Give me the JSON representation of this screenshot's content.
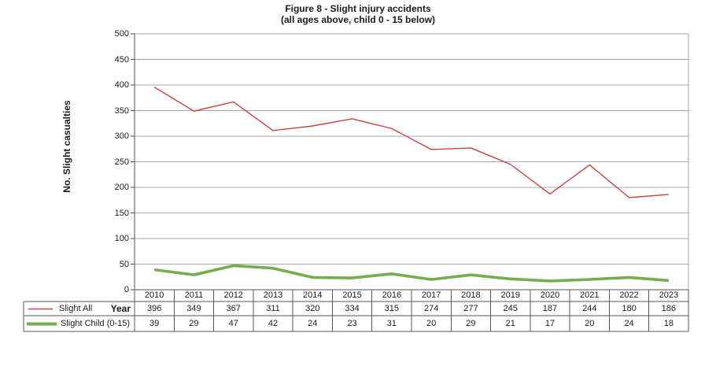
{
  "title": {
    "line1": "Figure 8 - Slight injury accidents",
    "line2": "(all ages above, child 0 - 15 below)"
  },
  "chart_data": {
    "type": "line",
    "title": "Figure 8 - Slight injury accidents (all ages above, child 0 - 15 below)",
    "xlabel": "Year",
    "ylabel": "No. Slight casualties",
    "categories": [
      "2010",
      "2011",
      "2012",
      "2013",
      "2014",
      "2015",
      "2016",
      "2017",
      "2018",
      "2019",
      "2020",
      "2021",
      "2022",
      "2023"
    ],
    "series": [
      {
        "name": "Slight All",
        "color": "#cc4141",
        "stroke_width": 1.4,
        "values": [
          396,
          349,
          367,
          311,
          320,
          334,
          315,
          274,
          277,
          245,
          187,
          244,
          180,
          186
        ]
      },
      {
        "name": "Slight Child (0-15)",
        "color": "#77ad4e",
        "stroke_width": 3.6,
        "values": [
          39,
          29,
          47,
          42,
          24,
          23,
          31,
          20,
          29,
          21,
          17,
          20,
          24,
          18
        ]
      }
    ],
    "ylim": [
      0,
      500
    ],
    "y_tick_step": 50,
    "grid": true,
    "legend_position": "table-left",
    "show_data_table": true,
    "colors": {
      "grid": "#a8a8a8",
      "axis": "#4d4d4d",
      "table_border": "#595959",
      "text": "#1a1a1a"
    }
  }
}
